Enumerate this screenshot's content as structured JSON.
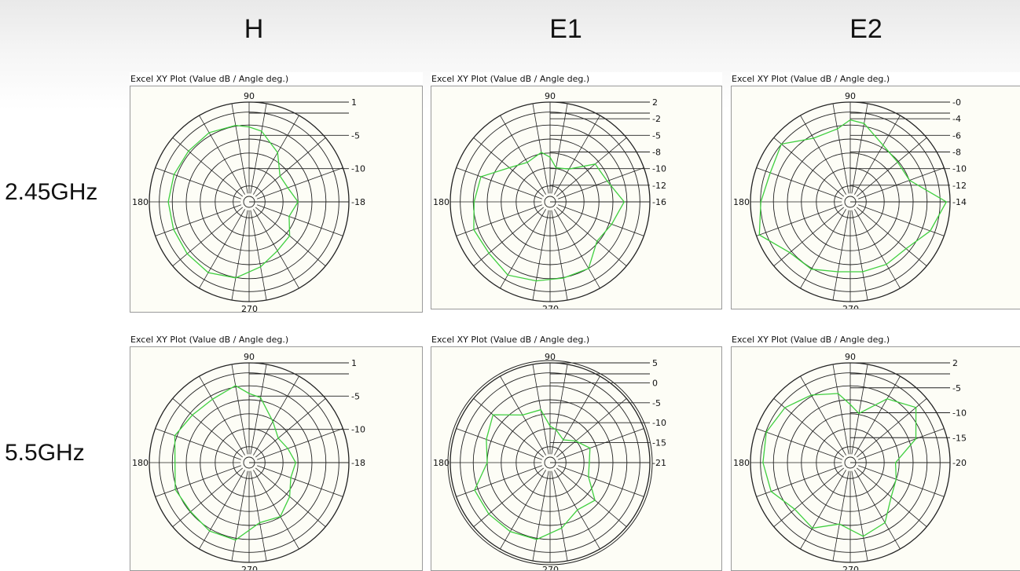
{
  "columns": [
    "H",
    "E1",
    "E2"
  ],
  "rows": [
    "2.45GHz",
    "5.5GHz"
  ],
  "colors": {
    "pattern": "#3fcf3f",
    "grid": "#222222",
    "plot_bg": "#fdfdf6"
  },
  "chart_data": [
    {
      "type": "polar",
      "title": "Excel XY Plot (Value dB / Angle deg.)",
      "band": "2.45GHz",
      "plane": "H",
      "angle_labels": [
        "90",
        "180",
        "270"
      ],
      "scale_labels": [
        "1",
        "-5",
        "-10",
        "-18"
      ],
      "rlim": [
        -18,
        1
      ],
      "grid": true,
      "series": [
        {
          "angles_deg": [
            0,
            20,
            40,
            60,
            80,
            90,
            100,
            120,
            140,
            160,
            180,
            200,
            220,
            240,
            260,
            280,
            300,
            320,
            340
          ],
          "values_db": [
            -10.3,
            -12.0,
            -12.2,
            -8.5,
            -5.2,
            -4.5,
            -3.9,
            -3.4,
            -3.6,
            -3.4,
            -3.2,
            -3.3,
            -3.2,
            -3.0,
            -4.0,
            -6.5,
            -8.6,
            -9.4,
            -11.7
          ]
        }
      ]
    },
    {
      "type": "polar",
      "title": "Excel XY Plot (Value dB / Angle deg.)",
      "band": "2.45GHz",
      "plane": "E1",
      "angle_labels": [
        "90",
        "180",
        "270"
      ],
      "scale_labels": [
        "2",
        "-2",
        "-5",
        "-8",
        "-10",
        "-12",
        "-16"
      ],
      "rlim": [
        -16,
        2
      ],
      "grid": true,
      "series": [
        {
          "angles_deg": [
            0,
            20,
            40,
            60,
            80,
            90,
            100,
            120,
            140,
            160,
            180,
            200,
            220,
            240,
            260,
            280,
            300,
            320,
            340
          ],
          "values_db": [
            -3.4,
            -6.2,
            -6.6,
            -11.0,
            -11.7,
            -9.6,
            -8.4,
            -9.4,
            -7.8,
            -3.5,
            -3.0,
            -1.9,
            -2.2,
            -1.2,
            -2.1,
            -2.7,
            -2.8,
            -6.1,
            -5.2
          ]
        }
      ]
    },
    {
      "type": "polar",
      "title": "Excel XY Plot (Value dB / Angle deg.)",
      "band": "2.45GHz",
      "plane": "E2",
      "angle_labels": [
        "90",
        "180",
        "270"
      ],
      "scale_labels": [
        "-0",
        "-4",
        "-6",
        "-8",
        "-10",
        "-12",
        "-14"
      ],
      "rlim": [
        -14,
        0
      ],
      "grid": true,
      "series": [
        {
          "angles_deg": [
            0,
            20,
            40,
            60,
            80,
            90,
            100,
            120,
            140,
            160,
            180,
            200,
            220,
            240,
            260,
            280,
            300,
            320,
            340
          ],
          "values_db": [
            -0.6,
            -6.0,
            -6.2,
            -5.6,
            -3.3,
            -2.9,
            -4.2,
            -4.3,
            -1.6,
            -2.4,
            -1.7,
            -0.5,
            -3.4,
            -3.6,
            -4.7,
            -4.7,
            -4.5,
            -4.4,
            -2.4
          ]
        }
      ]
    },
    {
      "type": "polar",
      "title": "Excel XY Plot (Value dB / Angle deg.)",
      "band": "5.5GHz",
      "plane": "H",
      "angle_labels": [
        "90",
        "180",
        "270"
      ],
      "scale_labels": [
        "1",
        "-5",
        "-10",
        "-18"
      ],
      "rlim": [
        -18,
        1
      ],
      "grid": true,
      "series": [
        {
          "angles_deg": [
            0,
            20,
            40,
            60,
            80,
            90,
            100,
            120,
            140,
            160,
            180,
            200,
            220,
            240,
            260,
            280,
            300,
            320,
            340
          ],
          "values_db": [
            -10.8,
            -12.0,
            -12.7,
            -10.6,
            -6.5,
            -5.8,
            -3.8,
            -4.9,
            -4.7,
            -3.6,
            -4.7,
            -3.7,
            -4.2,
            -3.6,
            -3.7,
            -7.6,
            -7.3,
            -9.4,
            -11.3
          ]
        }
      ]
    },
    {
      "type": "polar",
      "title": "Excel XY Plot (Value dB / Angle deg.)",
      "band": "5.5GHz",
      "plane": "E1",
      "angle_labels": [
        "90",
        "180",
        "270"
      ],
      "scale_labels": [
        "5",
        "0",
        "-5",
        "-10",
        "-15",
        "-21"
      ],
      "rlim": [
        -21,
        5
      ],
      "grid": true,
      "series": [
        {
          "angles_deg": [
            0,
            20,
            40,
            60,
            80,
            90,
            100,
            120,
            140,
            160,
            180,
            200,
            220,
            240,
            260,
            280,
            300,
            320,
            340
          ],
          "values_db": [
            -13.4,
            -12.4,
            -15.1,
            -17.3,
            -15.1,
            -14.2,
            -9.0,
            -8.6,
            -2.7,
            -4.7,
            -6.2,
            -0.9,
            -1.0,
            -1.1,
            -1.6,
            -5.1,
            -8.7,
            -7.5,
            -12.9
          ]
        }
      ]
    },
    {
      "type": "polar",
      "title": "Excel XY Plot (Value dB / Angle deg.)",
      "band": "5.5GHz",
      "plane": "E2",
      "angle_labels": [
        "90",
        "180",
        "270"
      ],
      "scale_labels": [
        "2",
        "-5",
        "-10",
        "-15",
        "-20"
      ],
      "rlim": [
        -20,
        2
      ],
      "grid": true,
      "series": [
        {
          "angles_deg": [
            0,
            20,
            40,
            60,
            80,
            90,
            100,
            120,
            140,
            160,
            180,
            200,
            220,
            240,
            260,
            280,
            300,
            320,
            340
          ],
          "values_db": [
            -12.0,
            -5.7,
            -1.6,
            -4.7,
            -10.8,
            -8.7,
            -5.6,
            -3.6,
            -1.7,
            -0.7,
            -1.2,
            -2.0,
            -5.0,
            -4.2,
            -7.6,
            -4.4,
            -5.8,
            -9.9,
            -11.1
          ]
        }
      ]
    }
  ]
}
